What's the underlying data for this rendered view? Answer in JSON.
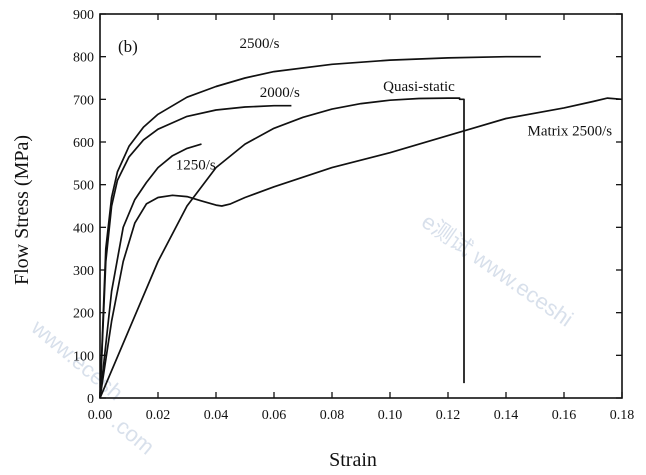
{
  "watermarks": [
    "e测试 www.eceshi",
    "www.ecesh",
    ".com"
  ],
  "chart_data": {
    "type": "line",
    "title": "",
    "panel_label": "(b)",
    "xlabel": "Strain",
    "ylabel": "Flow Stress (MPa)",
    "xlim": [
      0,
      0.18
    ],
    "ylim": [
      0,
      900
    ],
    "xticks": [
      0.0,
      0.02,
      0.04,
      0.06,
      0.08,
      0.1,
      0.12,
      0.14,
      0.16,
      0.18
    ],
    "xtick_labels": [
      "0.00",
      "0.02",
      "0.04",
      "0.06",
      "0.08",
      "0.10",
      "0.12",
      "0.14",
      "0.16",
      "0.18"
    ],
    "yticks": [
      0,
      100,
      200,
      300,
      400,
      500,
      600,
      700,
      800,
      900
    ],
    "ytick_labels": [
      "0",
      "100",
      "200",
      "300",
      "400",
      "500",
      "600",
      "700",
      "800",
      "900"
    ],
    "grid": false,
    "legend": "none (inline curve labels)",
    "series": [
      {
        "name": "2500/s",
        "label_at": [
          0.055,
          820
        ],
        "x": [
          0,
          0.002,
          0.004,
          0.006,
          0.01,
          0.015,
          0.02,
          0.03,
          0.04,
          0.05,
          0.06,
          0.08,
          0.1,
          0.12,
          0.14,
          0.152
        ],
        "y": [
          0,
          350,
          470,
          530,
          590,
          635,
          665,
          705,
          730,
          750,
          765,
          782,
          792,
          797,
          800,
          800
        ]
      },
      {
        "name": "2000/s",
        "label_at": [
          0.062,
          705
        ],
        "x": [
          0,
          0.002,
          0.004,
          0.006,
          0.01,
          0.015,
          0.02,
          0.03,
          0.04,
          0.05,
          0.06,
          0.066
        ],
        "y": [
          0,
          320,
          450,
          510,
          565,
          605,
          630,
          660,
          675,
          682,
          685,
          685
        ]
      },
      {
        "name": "Quasi-static",
        "label_at": [
          0.11,
          720
        ],
        "x": [
          0,
          0.01,
          0.02,
          0.03,
          0.04,
          0.05,
          0.06,
          0.07,
          0.08,
          0.09,
          0.1,
          0.11,
          0.12,
          0.124,
          0.124,
          0.1255,
          0.1255
        ],
        "y": [
          0,
          160,
          320,
          450,
          540,
          595,
          632,
          658,
          677,
          690,
          698,
          702,
          703,
          703,
          700,
          700,
          35
        ]
      },
      {
        "name": "1250/s",
        "label_at": [
          0.033,
          535
        ],
        "x": [
          0,
          0.004,
          0.008,
          0.012,
          0.016,
          0.02,
          0.025,
          0.03,
          0.035
        ],
        "y": [
          0,
          250,
          400,
          465,
          505,
          540,
          568,
          585,
          595
        ]
      },
      {
        "name": "Matrix 2500/s",
        "label_at": [
          0.162,
          615
        ],
        "x": [
          0,
          0.004,
          0.008,
          0.012,
          0.016,
          0.02,
          0.025,
          0.03,
          0.035,
          0.04,
          0.042,
          0.045,
          0.05,
          0.06,
          0.08,
          0.1,
          0.12,
          0.14,
          0.16,
          0.17,
          0.175,
          0.18
        ],
        "y": [
          0,
          180,
          320,
          410,
          455,
          470,
          475,
          472,
          462,
          452,
          450,
          455,
          470,
          495,
          540,
          575,
          615,
          655,
          680,
          695,
          703,
          700
        ]
      }
    ]
  }
}
